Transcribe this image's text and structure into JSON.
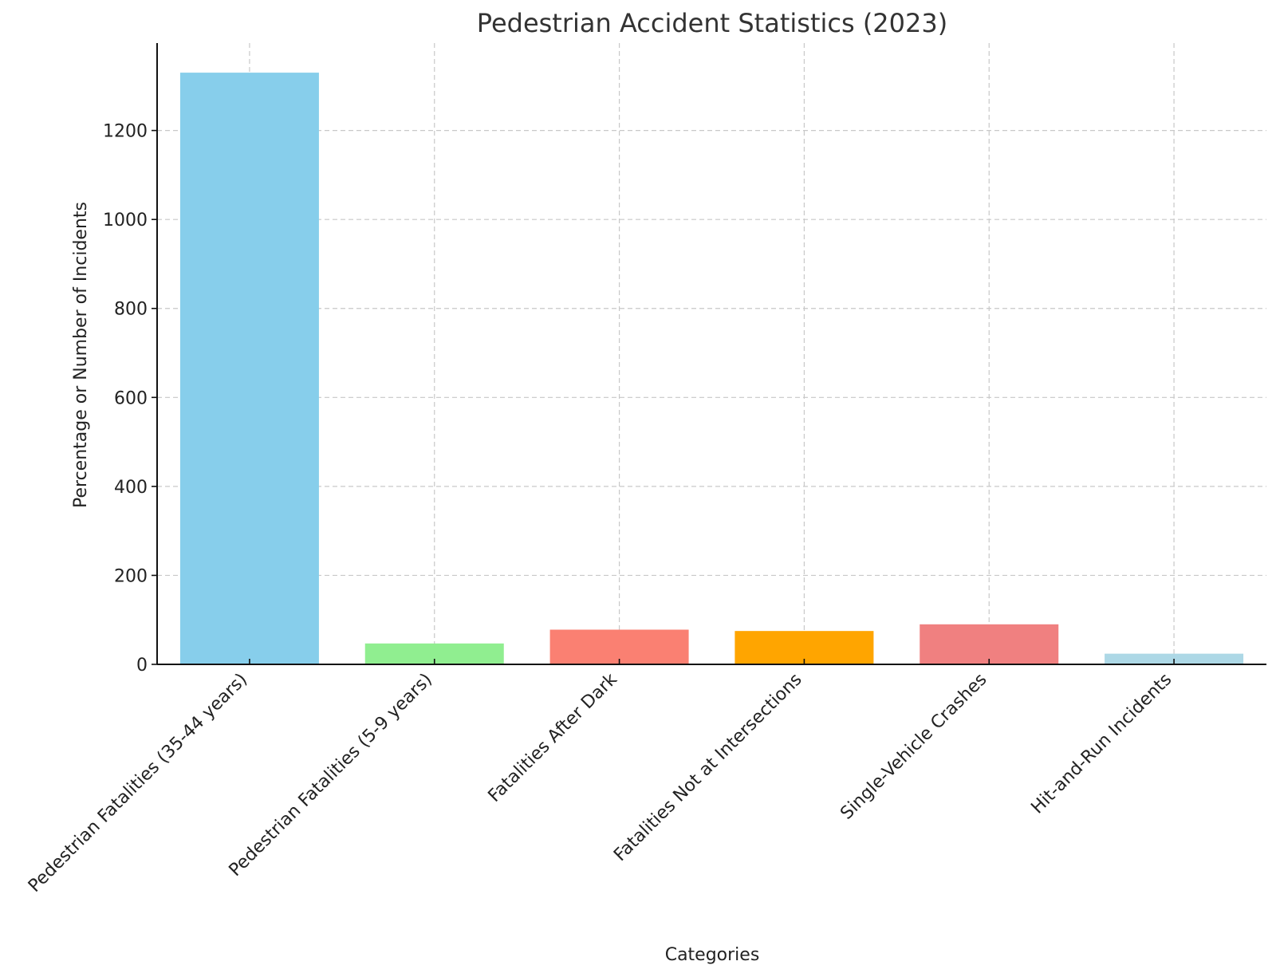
{
  "chart_data": {
    "type": "bar",
    "title": "Pedestrian Accident Statistics (2023)",
    "xlabel": "Categories",
    "ylabel": "Percentage or Number of Incidents",
    "categories": [
      "Pedestrian Fatalities (35-44 years)",
      "Pedestrian Fatalities (5-9 years)",
      "Fatalities After Dark",
      "Fatalities Not at Intersections",
      "Single-Vehicle Crashes",
      "Hit-and-Run Incidents"
    ],
    "values": [
      1330,
      47,
      78,
      75,
      90,
      24
    ],
    "colors": [
      "#87ceeb",
      "#90ee90",
      "#fa8072",
      "#ffa500",
      "#f08080",
      "#add8e6"
    ],
    "yticks": [
      0,
      200,
      400,
      600,
      800,
      1000,
      1200
    ],
    "ylim": [
      0,
      1396.5
    ],
    "grid": true,
    "legend": "none"
  }
}
